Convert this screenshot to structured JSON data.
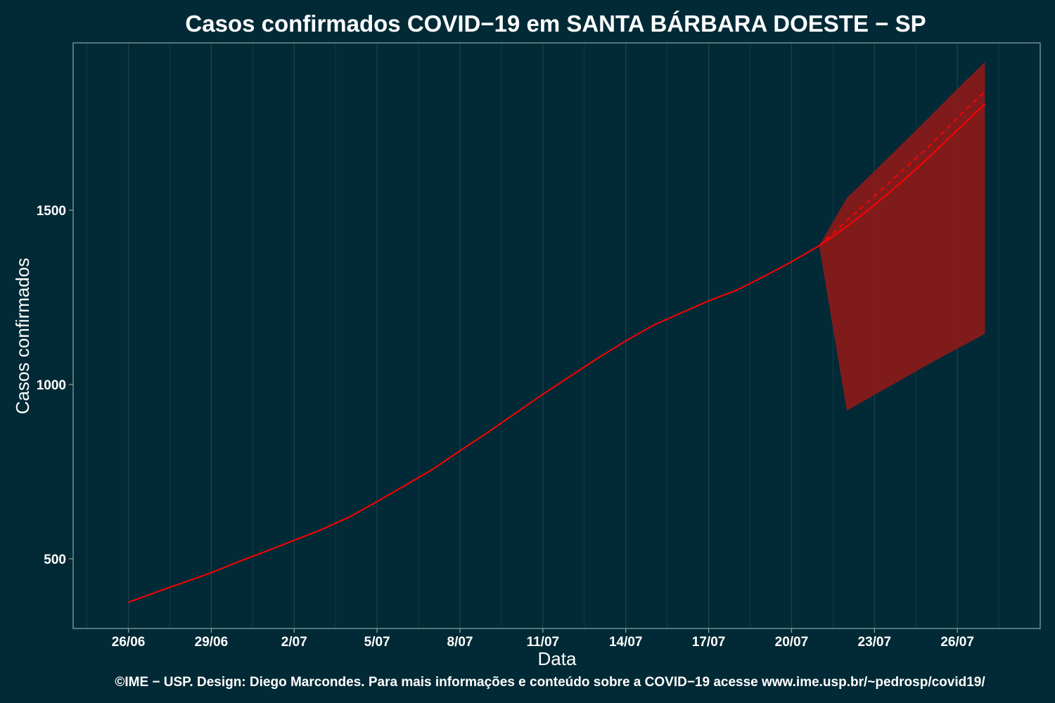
{
  "chart_data": {
    "type": "line",
    "title": "Casos confirmados COVID−19 em SANTA BÁRBARA DOESTE − SP",
    "xlabel": "Data",
    "ylabel": "Casos confirmados",
    "caption": "©IME − USP. Design: Diego Marcondes. Para mais informações e conteúdo sobre a COVID−19 acesse www.ime.usp.br/~pedrosp/covid19/",
    "x_ticks": [
      {
        "date": "2020-06-26",
        "label": "26/06"
      },
      {
        "date": "2020-06-29",
        "label": "29/06"
      },
      {
        "date": "2020-07-02",
        "label": "2/07"
      },
      {
        "date": "2020-07-05",
        "label": "5/07"
      },
      {
        "date": "2020-07-08",
        "label": "8/07"
      },
      {
        "date": "2020-07-11",
        "label": "11/07"
      },
      {
        "date": "2020-07-14",
        "label": "14/07"
      },
      {
        "date": "2020-07-17",
        "label": "17/07"
      },
      {
        "date": "2020-07-20",
        "label": "20/07"
      },
      {
        "date": "2020-07-23",
        "label": "23/07"
      },
      {
        "date": "2020-07-26",
        "label": "26/07"
      }
    ],
    "y_ticks": [
      500,
      1000,
      1500
    ],
    "xlim": [
      "2020-06-24",
      "2020-07-29"
    ],
    "ylim": [
      300,
      1980
    ],
    "grid": {
      "vertical": true,
      "horizontal": false
    },
    "colors": {
      "background": "#022a36",
      "observed_line": "#ff0000",
      "forecast_line": "#ff0000",
      "interval_fill": "#8b1a1a",
      "grid": "#1c414c",
      "axis": "#8fa6ab"
    },
    "series": [
      {
        "style": "solid",
        "points": [
          {
            "x": "2020-06-26",
            "y": 375
          },
          {
            "x": "2020-06-27",
            "y": 404
          },
          {
            "x": "2020-06-28",
            "y": 432
          },
          {
            "x": "2020-06-29",
            "y": 460
          },
          {
            "x": "2020-06-30",
            "y": 492
          },
          {
            "x": "2020-07-01",
            "y": 522
          },
          {
            "x": "2020-07-02",
            "y": 553
          },
          {
            "x": "2020-07-03",
            "y": 584
          },
          {
            "x": "2020-07-04",
            "y": 620
          },
          {
            "x": "2020-07-05",
            "y": 664
          },
          {
            "x": "2020-07-06",
            "y": 710
          },
          {
            "x": "2020-07-07",
            "y": 756
          },
          {
            "x": "2020-07-08",
            "y": 810
          },
          {
            "x": "2020-07-09",
            "y": 862
          },
          {
            "x": "2020-07-10",
            "y": 917
          },
          {
            "x": "2020-07-11",
            "y": 972
          },
          {
            "x": "2020-07-12",
            "y": 1024
          },
          {
            "x": "2020-07-13",
            "y": 1076
          },
          {
            "x": "2020-07-14",
            "y": 1125
          },
          {
            "x": "2020-07-15",
            "y": 1170
          },
          {
            "x": "2020-07-16",
            "y": 1205
          },
          {
            "x": "2020-07-17",
            "y": 1240
          },
          {
            "x": "2020-07-18",
            "y": 1270
          },
          {
            "x": "2020-07-19",
            "y": 1310
          },
          {
            "x": "2020-07-20",
            "y": 1352
          },
          {
            "x": "2020-07-21",
            "y": 1398
          },
          {
            "x": "2020-07-22",
            "y": 1453
          },
          {
            "x": "2020-07-23",
            "y": 1515
          },
          {
            "x": "2020-07-24",
            "y": 1582
          },
          {
            "x": "2020-07-25",
            "y": 1654
          },
          {
            "x": "2020-07-26",
            "y": 1730
          },
          {
            "x": "2020-07-27",
            "y": 1805
          }
        ]
      },
      {
        "style": "dashed",
        "points": [
          {
            "x": "2020-07-21",
            "y": 1398
          },
          {
            "x": "2020-07-22",
            "y": 1470
          },
          {
            "x": "2020-07-23",
            "y": 1540
          },
          {
            "x": "2020-07-24",
            "y": 1612
          },
          {
            "x": "2020-07-25",
            "y": 1685
          },
          {
            "x": "2020-07-26",
            "y": 1765
          },
          {
            "x": "2020-07-27",
            "y": 1840
          }
        ]
      }
    ],
    "interval": {
      "lower": [
        {
          "x": "2020-07-21",
          "y": 1398
        },
        {
          "x": "2020-07-22",
          "y": 925
        },
        {
          "x": "2020-07-23",
          "y": 970
        },
        {
          "x": "2020-07-24",
          "y": 1015
        },
        {
          "x": "2020-07-25",
          "y": 1060
        },
        {
          "x": "2020-07-26",
          "y": 1103
        },
        {
          "x": "2020-07-27",
          "y": 1145
        }
      ],
      "upper": [
        {
          "x": "2020-07-21",
          "y": 1398
        },
        {
          "x": "2020-07-22",
          "y": 1535
        },
        {
          "x": "2020-07-23",
          "y": 1612
        },
        {
          "x": "2020-07-24",
          "y": 1690
        },
        {
          "x": "2020-07-25",
          "y": 1768
        },
        {
          "x": "2020-07-26",
          "y": 1848
        },
        {
          "x": "2020-07-27",
          "y": 1925
        }
      ]
    }
  }
}
